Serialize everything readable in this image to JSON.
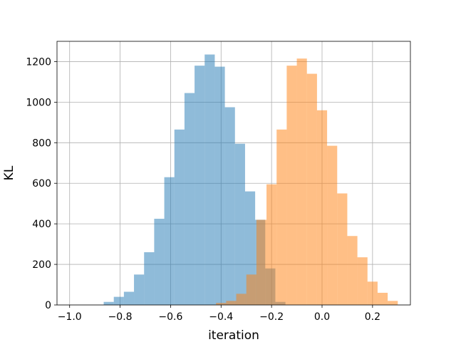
{
  "chart_data": {
    "type": "bar",
    "chart_kind": "histogram",
    "xlabel": "iteration",
    "ylabel": "KL",
    "xlim": [
      -1.05,
      0.35
    ],
    "ylim": [
      0,
      1300
    ],
    "xticks": [
      -1.0,
      -0.8,
      -0.6,
      -0.4,
      -0.2,
      0.0,
      0.2
    ],
    "xtick_labels": [
      "−1.0",
      "−0.8",
      "−0.6",
      "−0.4",
      "−0.2",
      "0.0",
      "0.2"
    ],
    "yticks": [
      0,
      200,
      400,
      600,
      800,
      1000,
      1200
    ],
    "ytick_labels": [
      "0",
      "200",
      "400",
      "600",
      "800",
      "1000",
      "1200"
    ],
    "grid": true,
    "legend": "none",
    "series": [
      {
        "color": "#1f77b4",
        "opacity": 0.5,
        "bin_width": 0.04,
        "bins_start": [
          -0.865,
          -0.825,
          -0.785,
          -0.745,
          -0.705,
          -0.665,
          -0.625,
          -0.585,
          -0.545,
          -0.505,
          -0.465,
          -0.425,
          -0.385,
          -0.345,
          -0.305,
          -0.265,
          -0.225,
          -0.185
        ],
        "counts": [
          15,
          40,
          65,
          150,
          260,
          425,
          630,
          865,
          1045,
          1180,
          1235,
          1175,
          975,
          795,
          560,
          420,
          180,
          15
        ]
      },
      {
        "color": "#ff7f0e",
        "opacity": 0.5,
        "bin_width": 0.04,
        "bins_start": [
          -0.42,
          -0.38,
          -0.34,
          -0.3,
          -0.26,
          -0.22,
          -0.18,
          -0.14,
          -0.1,
          -0.06,
          -0.02,
          0.02,
          0.06,
          0.1,
          0.14,
          0.18,
          0.22,
          0.26
        ],
        "counts": [
          10,
          20,
          55,
          150,
          420,
          595,
          865,
          1180,
          1215,
          1140,
          960,
          785,
          550,
          340,
          235,
          115,
          60,
          20
        ]
      }
    ]
  }
}
